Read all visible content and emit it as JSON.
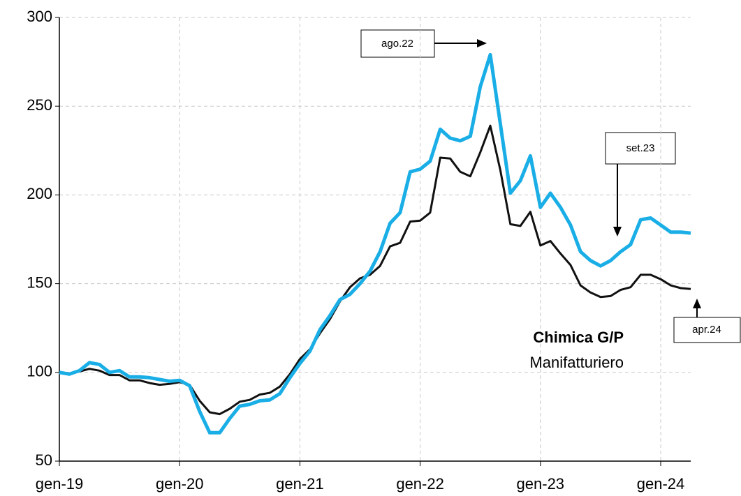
{
  "chart_data": {
    "type": "line",
    "categories": [
      "gen-19",
      null,
      null,
      null,
      null,
      null,
      null,
      null,
      null,
      null,
      null,
      null,
      "gen-20",
      null,
      null,
      null,
      null,
      null,
      null,
      null,
      null,
      null,
      null,
      null,
      "gen-21",
      null,
      null,
      null,
      null,
      null,
      null,
      null,
      null,
      null,
      null,
      null,
      "gen-22",
      null,
      null,
      null,
      null,
      null,
      null,
      null,
      null,
      null,
      null,
      null,
      "gen-23",
      null,
      null,
      null,
      null,
      null,
      null,
      null,
      null,
      null,
      null,
      null,
      "gen-24",
      null,
      null,
      null
    ],
    "series": [
      {
        "name": "Chimica G/P",
        "color": "#1aaee6",
        "values": [
          100,
          99,
          101,
          105.5,
          104.5,
          100,
          101,
          97.5,
          97.5,
          97,
          96,
          95,
          95.5,
          92.5,
          78,
          66,
          66,
          74,
          81,
          82,
          84,
          84.5,
          88,
          97,
          105,
          112,
          124,
          132,
          141,
          144,
          150,
          157,
          168,
          184,
          190,
          213,
          214.5,
          219,
          237,
          232,
          230.5,
          233,
          261,
          279,
          240,
          201,
          208,
          222,
          193,
          201,
          193,
          183,
          168,
          163,
          160,
          163,
          168,
          172,
          186,
          187,
          183,
          179,
          179,
          178.5
        ]
      },
      {
        "name": "Manifatturiero",
        "color": "#111111",
        "values": [
          100,
          99.5,
          100.5,
          102,
          101,
          98.5,
          98.5,
          95.5,
          95.5,
          94,
          93,
          93.5,
          94.5,
          93,
          84,
          77.5,
          76.5,
          79.5,
          83.5,
          84.5,
          87.5,
          88.5,
          92,
          99,
          107.5,
          113,
          122,
          130,
          140,
          148,
          153,
          155,
          160,
          171,
          173,
          185,
          185.5,
          190,
          221,
          220.5,
          213,
          210.5,
          224,
          239,
          214,
          183.5,
          182.5,
          190.5,
          171.5,
          174,
          167,
          160.5,
          149,
          145,
          142.5,
          143,
          146.5,
          148,
          155,
          155,
          152.5,
          149,
          147.5,
          147
        ]
      }
    ],
    "ylim": [
      50,
      300
    ],
    "yticks": [
      50,
      100,
      150,
      200,
      250,
      300
    ],
    "grid": true,
    "annotations": [
      "ago.22",
      "set.23",
      "apr.24"
    ]
  }
}
